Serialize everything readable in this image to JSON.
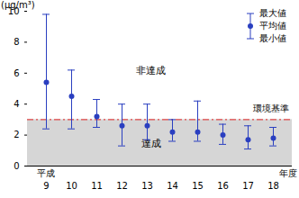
{
  "chart_data": {
    "type": "scatter",
    "categories": [
      "9",
      "10",
      "11",
      "12",
      "13",
      "14",
      "15",
      "16",
      "17",
      "18"
    ],
    "values": [
      5.4,
      4.5,
      3.2,
      2.6,
      2.6,
      2.2,
      2.2,
      2.0,
      1.7,
      1.8
    ],
    "max": [
      9.8,
      6.2,
      4.3,
      4.0,
      4.0,
      3.0,
      4.2,
      2.7,
      2.6,
      2.5
    ],
    "min": [
      2.4,
      2.4,
      2.5,
      1.3,
      1.7,
      1.6,
      1.6,
      1.4,
      1.1,
      1.3
    ],
    "color": "#2a3fc0",
    "ylim": [
      0,
      10
    ],
    "yticks": [
      0,
      2,
      4,
      6,
      8,
      10
    ],
    "y_label": "(μg/m³)",
    "x_label": "年度",
    "era_label": "平成",
    "threshold": {
      "value": 3,
      "label": "環境基準",
      "color": "#e04848"
    },
    "region_labels": {
      "above": "非達成",
      "below": "達成"
    },
    "legend_labels": [
      "最大値",
      "平均値",
      "最小値"
    ],
    "legend": "upper right",
    "grid": false
  }
}
